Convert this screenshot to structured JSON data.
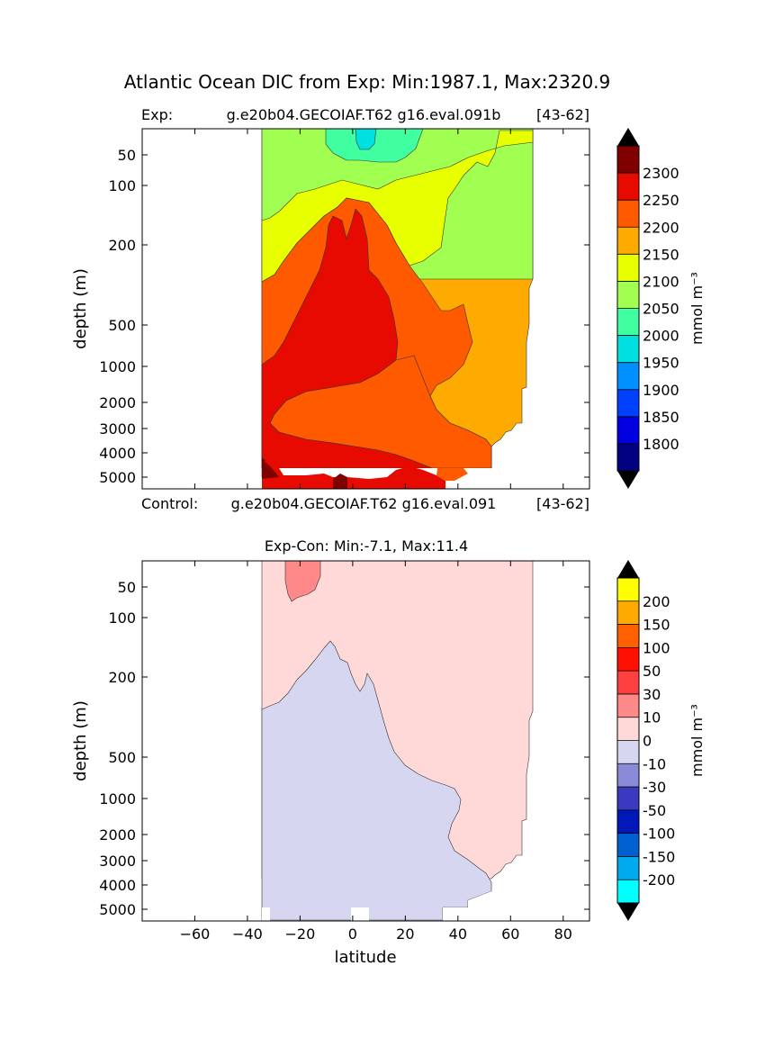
{
  "figure": {
    "suptitle": "Atlantic Ocean DIC from Exp: Min:1987.1, Max:2320.9"
  },
  "chart_data": [
    {
      "type": "heatmap",
      "panel": "experiment",
      "title_left": "Exp:",
      "title_center": "g.e20b04.GECOIAF.T62 g16.eval.091b",
      "title_right": "[43-62]",
      "ylabel": "depth (m)",
      "xlim": [
        -80,
        90
      ],
      "depth_ticks": [
        50,
        100,
        200,
        500,
        1000,
        2000,
        3000,
        4000,
        5000
      ],
      "colorbar": {
        "label": "mmol m⁻³",
        "levels": [
          1750,
          1800,
          1850,
          1900,
          1950,
          2000,
          2050,
          2100,
          2150,
          2200,
          2250,
          2300,
          2350
        ],
        "tick_labels": [
          "1800",
          "1850",
          "1900",
          "1950",
          "2000",
          "2050",
          "2100",
          "2150",
          "2200",
          "2250",
          "2300"
        ],
        "colors": [
          "#000080",
          "#0000e0",
          "#0040ff",
          "#0090ff",
          "#00e0e0",
          "#40ffa0",
          "#a0ff50",
          "#e8ff00",
          "#ffaa00",
          "#ff5a00",
          "#e60a00",
          "#800000"
        ],
        "extend_under": "#000000",
        "extend_over": "#000000"
      },
      "regions": [
        {
          "level": 2125,
          "color": "#ffaa00"
        },
        {
          "level": 2075,
          "color": "#a0ff50"
        },
        {
          "level": 2100,
          "color": "#e8ff00"
        },
        {
          "level": 2025,
          "color": "#40ffa0"
        },
        {
          "level": 1975,
          "color": "#00e0e0"
        },
        {
          "level": 2175,
          "color": "#ff5a00"
        },
        {
          "level": 2225,
          "color": "#e60a00"
        },
        {
          "level": 2275,
          "color": "#800000"
        }
      ]
    },
    {
      "type": "heatmap",
      "panel": "difference",
      "title": "Exp-Con: Min:-7.1, Max:11.4",
      "xlabel": "latitude",
      "ylabel": "depth (m)",
      "xlim": [
        -80,
        90
      ],
      "x_ticks": [
        -60,
        -40,
        -20,
        0,
        20,
        40,
        60,
        80
      ],
      "x_tick_labels": [
        "−60",
        "−40",
        "−20",
        "0",
        "20",
        "40",
        "60",
        "80"
      ],
      "depth_ticks": [
        50,
        100,
        200,
        500,
        1000,
        2000,
        3000,
        4000,
        5000
      ],
      "colorbar": {
        "label": "mmol m⁻³",
        "levels": [
          -250,
          -200,
          -150,
          -100,
          -50,
          -30,
          -10,
          0,
          10,
          30,
          50,
          100,
          150,
          200,
          250
        ],
        "tick_labels": [
          "-200",
          "-150",
          "-100",
          "-50",
          "-30",
          "-10",
          "0",
          "10",
          "30",
          "50",
          "100",
          "150",
          "200"
        ],
        "colors": [
          "#00ffff",
          "#00aaee",
          "#0060d0",
          "#0018b8",
          "#3a3ac0",
          "#8a8ad8",
          "#d6d6f0",
          "#ffd8d8",
          "#ff8888",
          "#ff4040",
          "#ff1000",
          "#ff6000",
          "#ffaa00",
          "#ffff00"
        ],
        "extend_under": "#000000",
        "extend_over": "#000000"
      },
      "regions": [
        {
          "level": 5,
          "color": "#ffd8d8"
        },
        {
          "level": -5,
          "color": "#d6d6f0"
        },
        {
          "level": 20,
          "color": "#ff8888"
        }
      ]
    }
  ],
  "control_title": {
    "left": "Control:",
    "center": "g.e20b04.GECOIAF.T62 g16.eval.091",
    "right": "[43-62]"
  }
}
